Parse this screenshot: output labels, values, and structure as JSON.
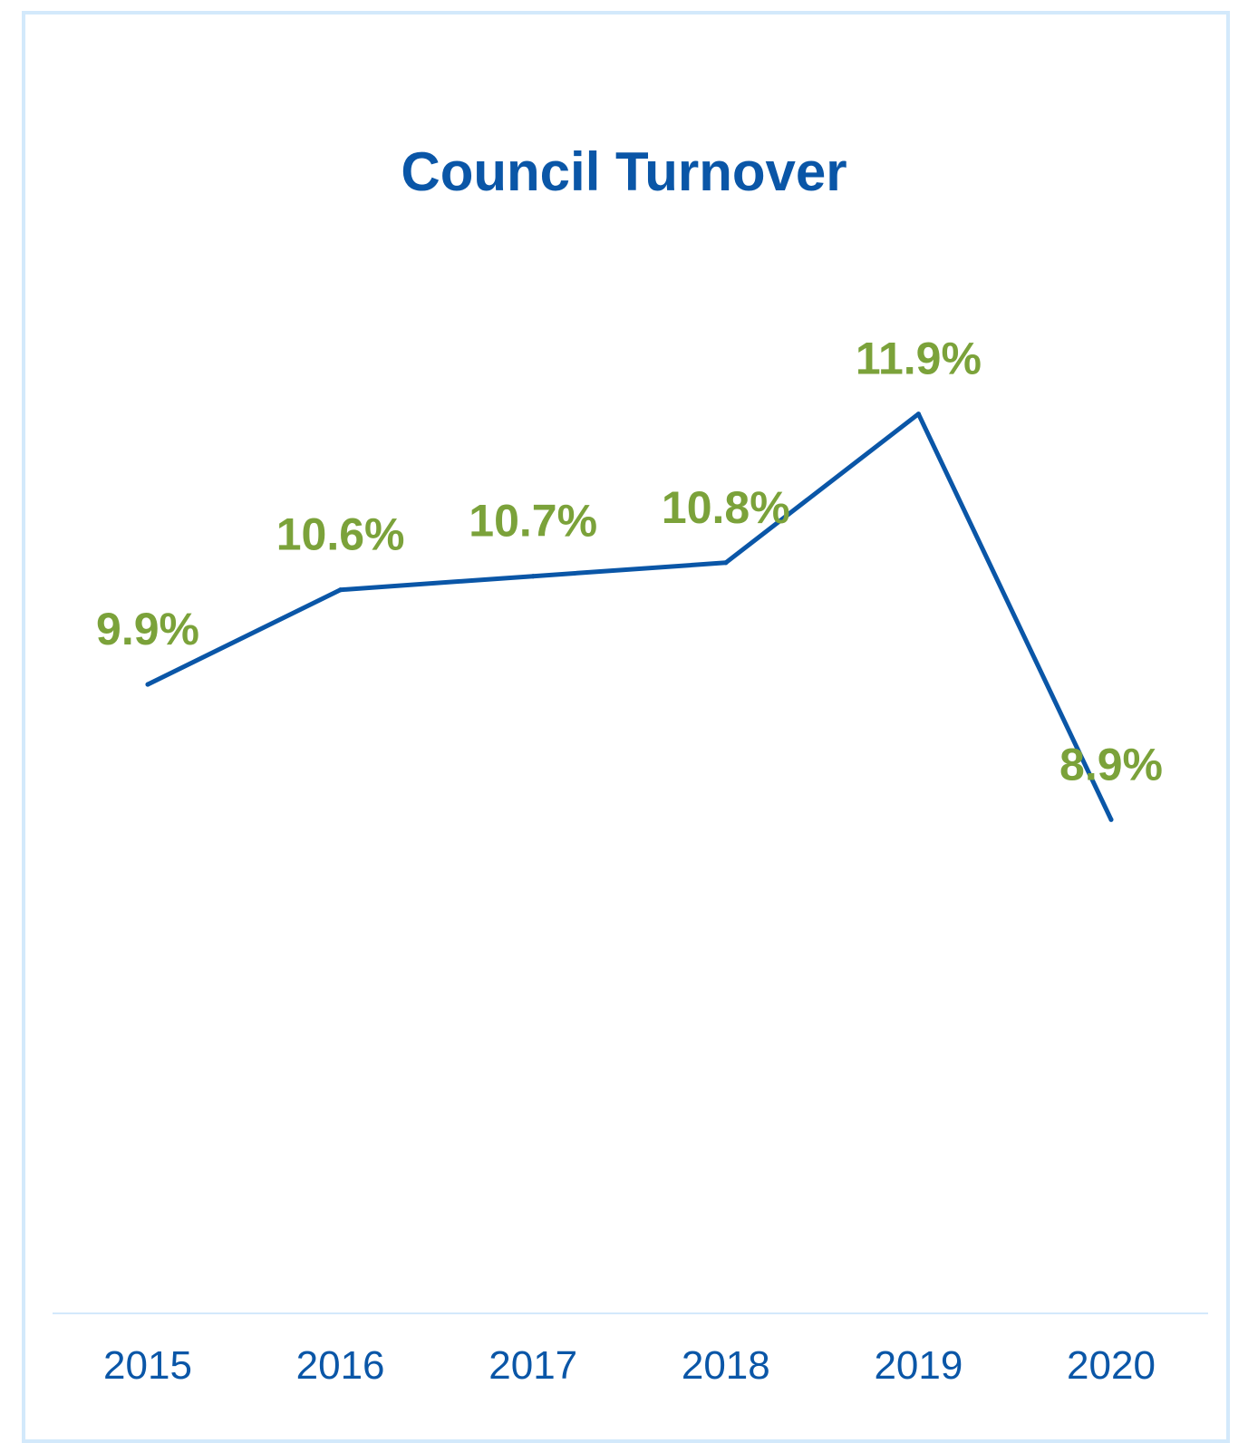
{
  "chart_data": {
    "type": "line",
    "title": "Council Turnover",
    "xlabel": "",
    "ylabel": "",
    "categories": [
      "2015",
      "2016",
      "2017",
      "2018",
      "2019",
      "2020"
    ],
    "series": [
      {
        "values": [
          9.9,
          10.6,
          10.7,
          10.8,
          11.9,
          8.9
        ],
        "data_labels": [
          "9.9%",
          "10.6%",
          "10.7%",
          "10.8%",
          "11.9%",
          "8.9%"
        ]
      }
    ],
    "ylim": [
      5.25,
      12.95
    ],
    "grid": false,
    "legend": "none",
    "colors": {
      "line": "#0a56a7",
      "data_label": "#7ba23a",
      "tick_label": "#0a56a7",
      "title": "#0a56a7",
      "axis": "#d3e9fb",
      "frame": "#d3e9fb"
    }
  }
}
